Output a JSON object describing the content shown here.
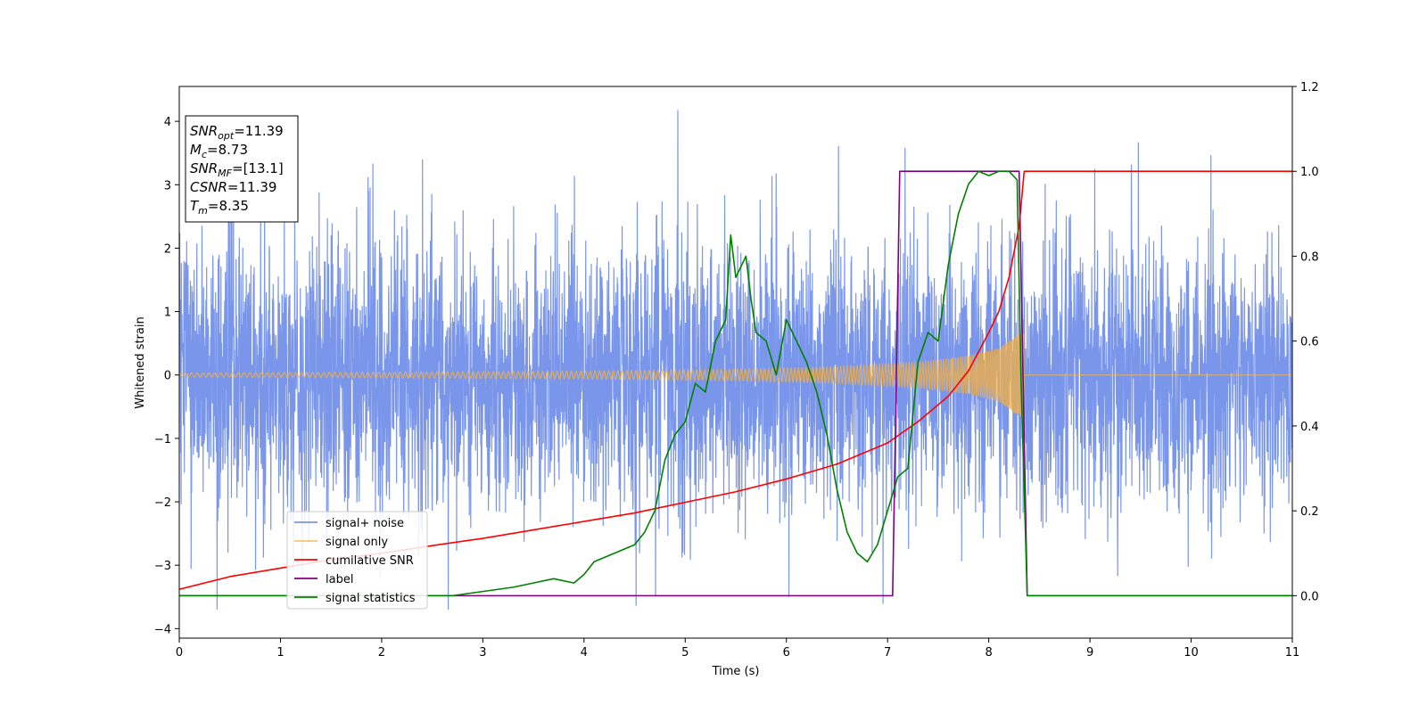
{
  "chart_data": {
    "type": "line",
    "xlabel": "Time (s)",
    "ylabel": "Whitened strain",
    "xlim": [
      0,
      11
    ],
    "ylim_left": [
      -4.15,
      4.55
    ],
    "ylim_right": [
      -0.1,
      1.2
    ],
    "x_ticks": [
      0,
      1,
      2,
      3,
      4,
      5,
      6,
      7,
      8,
      9,
      10,
      11
    ],
    "y_ticks_left": [
      -4,
      -3,
      -2,
      -1,
      0,
      1,
      2,
      3,
      4
    ],
    "y_ticks_right": [
      0.0,
      0.2,
      0.4,
      0.6,
      0.8,
      1.0,
      1.2
    ],
    "annotation": {
      "lines": [
        {
          "main": "SNR",
          "sub": "opt",
          "rest": "=11.39"
        },
        {
          "main": "M",
          "sub": "c",
          "rest": "=8.73"
        },
        {
          "main": "SNR",
          "sub": "MF",
          "rest": "=[13.1]"
        },
        {
          "main": "CSNR",
          "sub": "",
          "rest": "=11.39"
        },
        {
          "main": "T",
          "sub": "m",
          "rest": "=8.35"
        }
      ]
    },
    "legend": {
      "position": "lower-left",
      "entries": [
        {
          "label": "signal+ noise",
          "color": "#4169e1"
        },
        {
          "label": "signal only",
          "color": "#f5b041"
        },
        {
          "label": "cumilative SNR",
          "color": "#ff0000"
        },
        {
          "label": "label",
          "color": "#800080"
        },
        {
          "label": "signal statistics",
          "color": "#008000"
        }
      ]
    },
    "series": [
      {
        "name": "signal+ noise",
        "axis": "left",
        "color": "#4169e1",
        "kind": "noise",
        "noise_std": 1.05,
        "noise_range": [
          -3.7,
          4.18
        ]
      },
      {
        "name": "signal only",
        "axis": "left",
        "color": "#f5b041",
        "kind": "chirp",
        "t_start": 0,
        "t_merge": 8.35,
        "amplitude_points": [
          [
            0,
            0.03
          ],
          [
            4.0,
            0.06
          ],
          [
            5.5,
            0.09
          ],
          [
            6.5,
            0.13
          ],
          [
            7.3,
            0.2
          ],
          [
            7.8,
            0.3
          ],
          [
            8.1,
            0.42
          ],
          [
            8.3,
            0.65
          ],
          [
            8.35,
            0.68
          ]
        ]
      },
      {
        "name": "cumilative SNR",
        "axis": "right",
        "color": "#ff0000",
        "x": [
          0,
          0.5,
          1,
          1.5,
          2,
          2.5,
          3,
          3.5,
          4,
          4.5,
          5,
          5.5,
          6,
          6.5,
          7,
          7.3,
          7.6,
          7.8,
          8.0,
          8.1,
          8.2,
          8.3,
          8.35,
          8.4,
          11
        ],
        "y": [
          0.015,
          0.045,
          0.065,
          0.085,
          0.1,
          0.118,
          0.135,
          0.155,
          0.175,
          0.195,
          0.22,
          0.245,
          0.275,
          0.31,
          0.36,
          0.41,
          0.47,
          0.53,
          0.62,
          0.67,
          0.75,
          0.87,
          1.0,
          1.0,
          1.0
        ]
      },
      {
        "name": "label",
        "axis": "right",
        "color": "#800080",
        "x": [
          0,
          7.05,
          7.12,
          8.3,
          8.38,
          11
        ],
        "y": [
          0,
          0,
          1,
          1,
          0,
          0
        ]
      },
      {
        "name": "signal statistics",
        "axis": "right",
        "color": "#008000",
        "x": [
          0,
          2.7,
          3.0,
          3.3,
          3.5,
          3.7,
          3.9,
          4.0,
          4.1,
          4.2,
          4.3,
          4.4,
          4.5,
          4.6,
          4.7,
          4.8,
          4.9,
          5.0,
          5.1,
          5.2,
          5.3,
          5.4,
          5.45,
          5.5,
          5.6,
          5.65,
          5.7,
          5.8,
          5.9,
          6.0,
          6.1,
          6.2,
          6.3,
          6.4,
          6.5,
          6.6,
          6.7,
          6.8,
          6.9,
          7.0,
          7.1,
          7.2,
          7.3,
          7.4,
          7.5,
          7.6,
          7.7,
          7.8,
          7.9,
          8.0,
          8.1,
          8.2,
          8.28,
          8.32,
          8.38,
          11
        ],
        "y": [
          0,
          0.0,
          0.01,
          0.02,
          0.03,
          0.04,
          0.03,
          0.05,
          0.08,
          0.09,
          0.1,
          0.11,
          0.12,
          0.15,
          0.2,
          0.32,
          0.38,
          0.41,
          0.5,
          0.48,
          0.6,
          0.65,
          0.85,
          0.75,
          0.8,
          0.7,
          0.62,
          0.6,
          0.52,
          0.65,
          0.6,
          0.55,
          0.48,
          0.38,
          0.25,
          0.15,
          0.1,
          0.08,
          0.12,
          0.2,
          0.28,
          0.3,
          0.55,
          0.62,
          0.6,
          0.78,
          0.9,
          0.97,
          1.0,
          0.99,
          1.0,
          1.0,
          0.98,
          0.5,
          0.0,
          0.0
        ]
      }
    ]
  }
}
